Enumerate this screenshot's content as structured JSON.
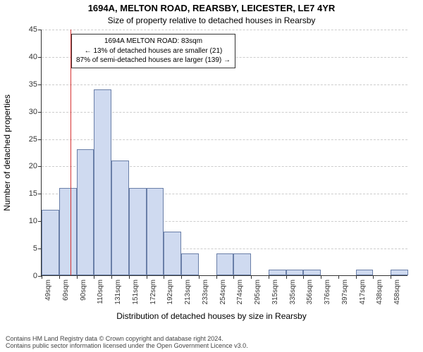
{
  "header": {
    "title": "1694A, MELTON ROAD, REARSBY, LEICESTER, LE7 4YR",
    "subtitle": "Size of property relative to detached houses in Rearsby"
  },
  "axes": {
    "x_label": "Distribution of detached houses by size in Rearsby",
    "y_label": "Number of detached properties",
    "y_max": 45,
    "y_ticks": [
      0,
      5,
      10,
      15,
      20,
      25,
      30,
      35,
      40,
      45
    ],
    "x_tick_labels": [
      "49sqm",
      "69sqm",
      "90sqm",
      "110sqm",
      "131sqm",
      "151sqm",
      "172sqm",
      "192sqm",
      "213sqm",
      "233sqm",
      "254sqm",
      "274sqm",
      "295sqm",
      "315sqm",
      "335sqm",
      "356sqm",
      "376sqm",
      "397sqm",
      "417sqm",
      "438sqm",
      "458sqm"
    ],
    "grid_color": "#cccccc",
    "axis_color": "#333333"
  },
  "bars": {
    "values": [
      12,
      16,
      23,
      34,
      21,
      16,
      16,
      8,
      4,
      0,
      4,
      4,
      0,
      1,
      1,
      1,
      0,
      0,
      1,
      0,
      1
    ],
    "fill_color": "#cfdaf0",
    "border_color": "#6a7fa8"
  },
  "reference": {
    "position_sqm": 83,
    "line_color": "#d73232",
    "line_width": 1
  },
  "annotation": {
    "line1": "1694A MELTON ROAD: 83sqm",
    "line2": "← 13% of detached houses are smaller (21)",
    "line3": "87% of semi-detached houses are larger (139) →"
  },
  "attribution": {
    "line1": "Contains HM Land Registry data © Crown copyright and database right 2024.",
    "line2": "Contains public sector information licensed under the Open Government Licence v3.0."
  }
}
